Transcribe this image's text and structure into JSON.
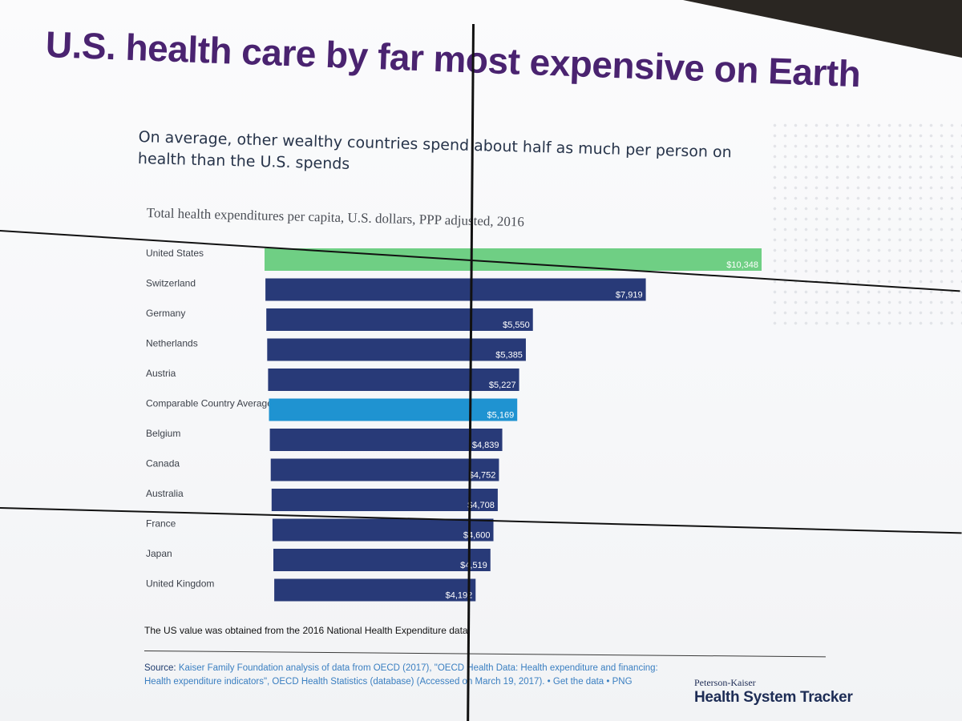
{
  "header": {
    "title": "U.S. health care by far most expensive on Earth",
    "subtitle": "On average, other wealthy countries spend about half as much per person on health than the U.S. spends"
  },
  "chart_data": {
    "type": "bar",
    "orientation": "horizontal",
    "title": "Total health expenditures per capita, U.S. dollars, PPP adjusted, 2016",
    "xlabel": "",
    "ylabel": "",
    "xlim": [
      0,
      10548
    ],
    "grid": false,
    "categories": [
      "United States",
      "Switzerland",
      "Germany",
      "Netherlands",
      "Austria",
      "Comparable Country Average",
      "Belgium",
      "Canada",
      "Australia",
      "France",
      "Japan",
      "United Kingdom"
    ],
    "values": [
      10348,
      7919,
      5550,
      5385,
      5227,
      5169,
      4839,
      4752,
      4708,
      4600,
      4519,
      4192
    ],
    "labels": [
      "$10,348",
      "$7,919",
      "$5,550",
      "$5,385",
      "$5,227",
      "$5,169",
      "$4,839",
      "$4,752",
      "$4,708",
      "$4,600",
      "$4,519",
      "$4,192"
    ],
    "colors": {
      "United States": "#6fcf84",
      "Comparable Country Average": "#1f93d1",
      "default": "#283a78"
    }
  },
  "footer": {
    "note": "The US value was obtained from the 2016 National Health Expenditure data",
    "source_label": "Source: ",
    "source_text": "Kaiser Family Foundation analysis of data from OECD (2017), \"OECD Health Data: Health expenditure and financing: Health expenditure indicators\", OECD Health Statistics (database) (Accessed on March 19, 2017). • Get the data • PNG",
    "logo_top": "Peterson-Kaiser",
    "logo_main": "Health System Tracker"
  }
}
